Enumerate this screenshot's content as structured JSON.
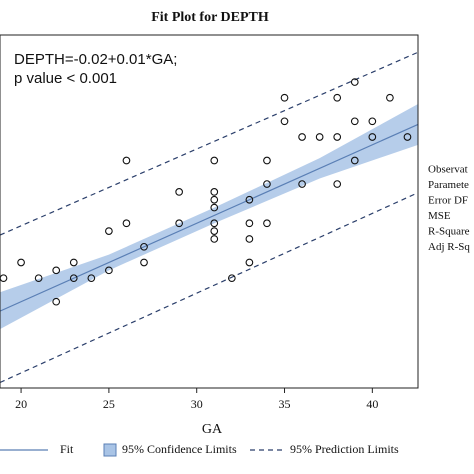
{
  "chart_data": {
    "type": "scatter",
    "title": "Fit Plot for DEPTH",
    "annotations": [
      "DEPTH=-0.02+0.01*GA;",
      "p value < 0.001"
    ],
    "x_label": "GA",
    "stats_labels": [
      "Observat",
      "Paramete",
      "Error DF",
      "MSE",
      "R-Square",
      "Adj R-Sq"
    ],
    "xlim": [
      18.8,
      42.6
    ],
    "xticks": [
      20,
      25,
      30,
      35,
      40
    ],
    "ylim": [
      0.07,
      0.52
    ],
    "points": {
      "x": [
        19,
        20,
        21,
        22,
        22,
        23,
        23,
        24,
        25,
        25,
        26,
        26,
        27,
        27,
        29,
        29,
        31,
        31,
        31,
        31,
        31,
        31,
        31,
        32,
        33,
        33,
        33,
        33,
        34,
        34,
        34,
        35,
        35,
        36,
        36,
        37,
        38,
        38,
        38,
        39,
        39,
        39,
        40,
        40,
        41,
        42
      ],
      "values": [
        0.21,
        0.23,
        0.21,
        0.22,
        0.18,
        0.23,
        0.21,
        0.21,
        0.22,
        0.27,
        0.28,
        0.36,
        0.25,
        0.23,
        0.28,
        0.32,
        0.36,
        0.32,
        0.31,
        0.3,
        0.28,
        0.27,
        0.26,
        0.21,
        0.31,
        0.28,
        0.26,
        0.23,
        0.36,
        0.33,
        0.28,
        0.44,
        0.41,
        0.39,
        0.33,
        0.39,
        0.44,
        0.39,
        0.33,
        0.46,
        0.41,
        0.36,
        0.41,
        0.39,
        0.44,
        0.39
      ]
    },
    "fit": {
      "name": "Fit",
      "color": "#5a7fb5",
      "x": [
        18.8,
        42.6
      ],
      "values": [
        0.168,
        0.406
      ]
    },
    "confidence": {
      "name": "95% Confidence Limits",
      "color": "#a9c4e6",
      "x": [
        18.8,
        25,
        31,
        37,
        42.6
      ],
      "lower": [
        0.145,
        0.22,
        0.28,
        0.337,
        0.38
      ],
      "upper": [
        0.192,
        0.24,
        0.3,
        0.363,
        0.432
      ]
    },
    "prediction": {
      "name": "95% Prediction Limits",
      "color": "#2b3f6b",
      "x": [
        18.8,
        42.6
      ],
      "lower": [
        0.077,
        0.319
      ],
      "upper": [
        0.265,
        0.498
      ]
    }
  }
}
